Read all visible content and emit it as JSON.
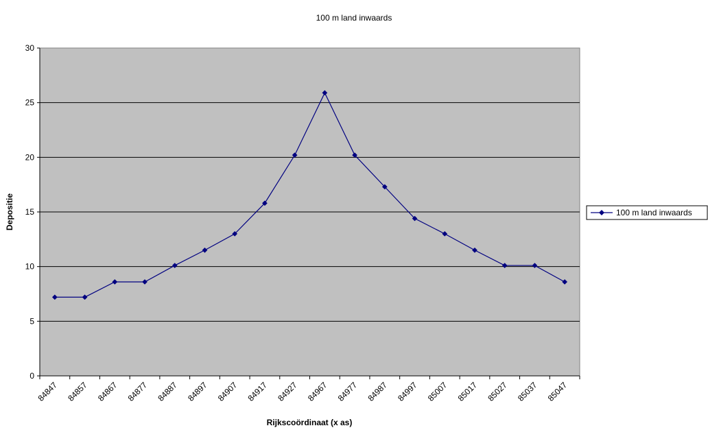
{
  "chart_data": {
    "type": "line",
    "title": "100 m land inwaards",
    "xlabel": "Rijkscoördinaat (x as)",
    "ylabel": "Depositie",
    "categories": [
      "84847",
      "84857",
      "84867",
      "84877",
      "84887",
      "84897",
      "84907",
      "84917",
      "84927",
      "84967",
      "84977",
      "84987",
      "84997",
      "85007",
      "85017",
      "85027",
      "85037",
      "85047"
    ],
    "series": [
      {
        "name": "100 m land inwaards",
        "color": "#000080",
        "values": [
          7.2,
          7.2,
          8.6,
          8.6,
          10.1,
          11.5,
          13.0,
          15.8,
          20.2,
          25.9,
          20.2,
          17.3,
          14.4,
          13.0,
          11.5,
          10.1,
          10.1,
          8.6
        ]
      }
    ],
    "ylim": [
      0,
      30
    ],
    "yticks": [
      "0",
      "5",
      "10",
      "15",
      "20",
      "25",
      "30"
    ],
    "grid": true,
    "legend": "right",
    "plot_background": "#c0c0c0"
  }
}
